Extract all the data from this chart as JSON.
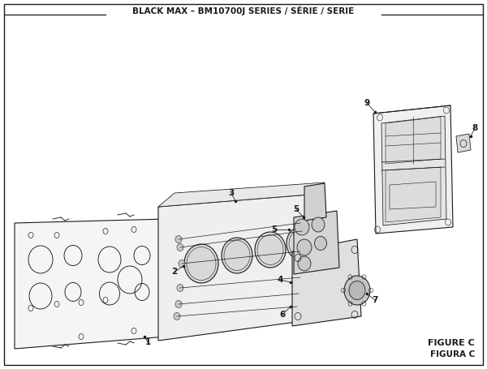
{
  "title": "BLACK MAX – BM10700J SERIES / SÉRIE / SERIE",
  "figure_label": "FIGURE C",
  "figura_label": "FIGURA C",
  "bg_color": "#ffffff",
  "line_color": "#1a1a1a"
}
